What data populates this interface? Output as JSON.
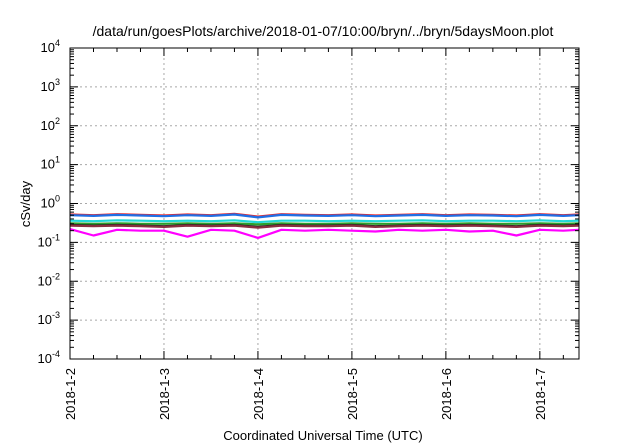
{
  "chart_data": {
    "type": "line",
    "title": "/data/run/goesPlots/archive/2018-01-07/10:00/bryn/../bryn/5daysMoon.plot",
    "xlabel": "Coordinated Universal Time (UTC)",
    "ylabel": "cSv/day",
    "yscale": "log",
    "ylim": [
      0.0001,
      10000
    ],
    "xlim": [
      "2018-01-02T00:00",
      "2018-01-07T10:00"
    ],
    "x_ticks": [
      "2018-1-2",
      "2018-1-3",
      "2018-1-4",
      "2018-1-5",
      "2018-1-6",
      "2018-1-7"
    ],
    "y_ticks": [
      {
        "base": "10",
        "exp": "-4"
      },
      {
        "base": "10",
        "exp": "-3"
      },
      {
        "base": "10",
        "exp": "-2"
      },
      {
        "base": "10",
        "exp": "-1"
      },
      {
        "base": "10",
        "exp": "0"
      },
      {
        "base": "10",
        "exp": "1"
      },
      {
        "base": "10",
        "exp": "2"
      },
      {
        "base": "10",
        "exp": "3"
      },
      {
        "base": "10",
        "exp": "4"
      }
    ],
    "grid": true,
    "x": [
      "2018-01-02T00:00",
      "2018-01-02T06:00",
      "2018-01-02T12:00",
      "2018-01-02T18:00",
      "2018-01-03T00:00",
      "2018-01-03T06:00",
      "2018-01-03T12:00",
      "2018-01-03T18:00",
      "2018-01-04T00:00",
      "2018-01-04T06:00",
      "2018-01-04T12:00",
      "2018-01-04T18:00",
      "2018-01-05T00:00",
      "2018-01-05T06:00",
      "2018-01-05T12:00",
      "2018-01-05T18:00",
      "2018-01-06T00:00",
      "2018-01-06T06:00",
      "2018-01-06T12:00",
      "2018-01-06T18:00",
      "2018-01-07T00:00",
      "2018-01-07T06:00",
      "2018-01-07T10:00"
    ],
    "series": [
      {
        "color": "#e8262a",
        "values": [
          0.52,
          0.5,
          0.53,
          0.51,
          0.49,
          0.52,
          0.5,
          0.54,
          0.46,
          0.53,
          0.51,
          0.5,
          0.52,
          0.49,
          0.51,
          0.53,
          0.5,
          0.52,
          0.51,
          0.49,
          0.53,
          0.5,
          0.52
        ]
      },
      {
        "color": "#1f6fe5",
        "values": [
          0.5,
          0.48,
          0.51,
          0.49,
          0.47,
          0.5,
          0.48,
          0.52,
          0.44,
          0.51,
          0.49,
          0.48,
          0.5,
          0.47,
          0.49,
          0.51,
          0.48,
          0.5,
          0.49,
          0.47,
          0.51,
          0.48,
          0.5
        ]
      },
      {
        "color": "#22d8d8",
        "values": [
          0.36,
          0.35,
          0.37,
          0.36,
          0.35,
          0.36,
          0.35,
          0.37,
          0.33,
          0.36,
          0.36,
          0.35,
          0.36,
          0.35,
          0.36,
          0.37,
          0.35,
          0.36,
          0.36,
          0.35,
          0.37,
          0.35,
          0.36
        ]
      },
      {
        "color": "#2ca02c",
        "values": [
          0.31,
          0.3,
          0.31,
          0.3,
          0.3,
          0.31,
          0.3,
          0.31,
          0.29,
          0.31,
          0.3,
          0.3,
          0.31,
          0.3,
          0.3,
          0.31,
          0.3,
          0.31,
          0.3,
          0.3,
          0.31,
          0.3,
          0.31
        ]
      },
      {
        "color": "#222222",
        "values": [
          0.28,
          0.27,
          0.28,
          0.27,
          0.26,
          0.28,
          0.27,
          0.28,
          0.25,
          0.28,
          0.27,
          0.27,
          0.28,
          0.26,
          0.27,
          0.28,
          0.27,
          0.28,
          0.27,
          0.26,
          0.28,
          0.27,
          0.28
        ]
      },
      {
        "color": "#8b2e3f",
        "values": [
          0.27,
          0.26,
          0.27,
          0.26,
          0.25,
          0.27,
          0.26,
          0.27,
          0.24,
          0.27,
          0.26,
          0.26,
          0.27,
          0.25,
          0.26,
          0.27,
          0.26,
          0.27,
          0.26,
          0.25,
          0.27,
          0.26,
          0.27
        ]
      },
      {
        "color": "#ff00ff",
        "values": [
          0.22,
          0.15,
          0.21,
          0.2,
          0.2,
          0.14,
          0.21,
          0.2,
          0.13,
          0.21,
          0.2,
          0.21,
          0.2,
          0.19,
          0.21,
          0.2,
          0.21,
          0.19,
          0.2,
          0.15,
          0.21,
          0.2,
          0.21
        ]
      }
    ]
  }
}
